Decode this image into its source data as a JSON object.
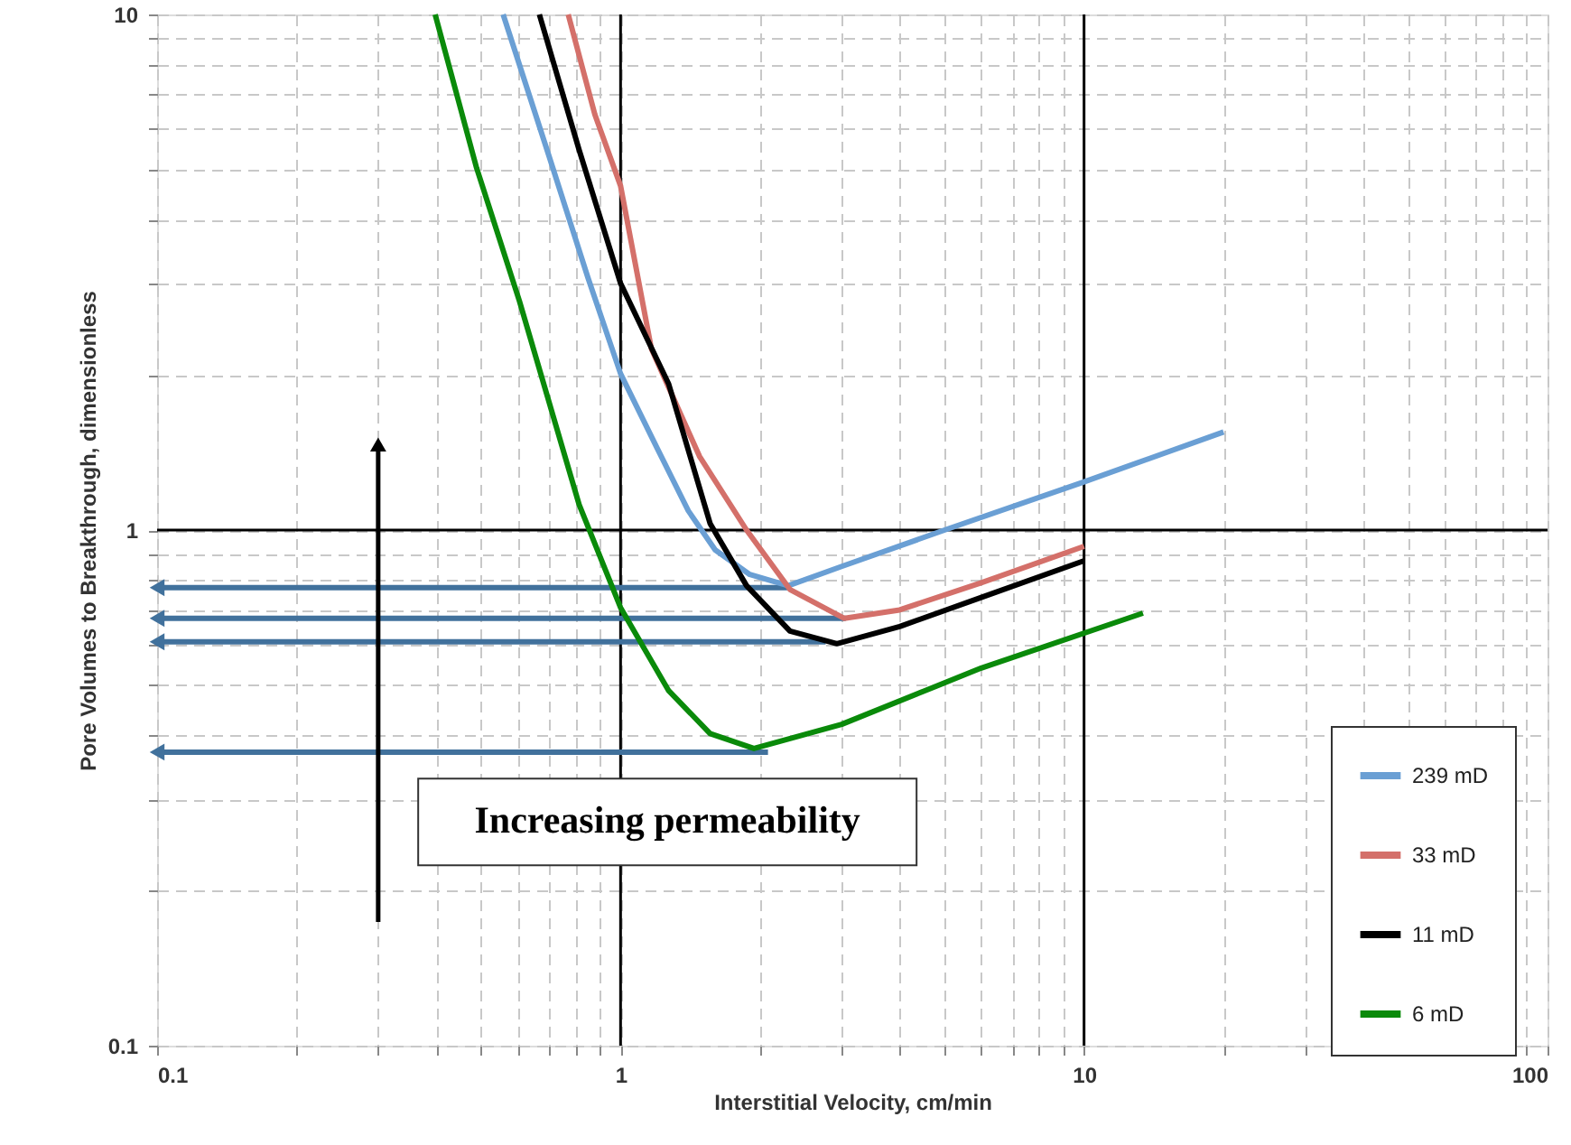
{
  "chart_data": {
    "type": "line",
    "xlabel": "Interstitial Velocity, cm/min",
    "ylabel": "Pore Volumes to Breakthrough, dimensionless",
    "log": "xy",
    "grid": true,
    "legend": "bottom right",
    "xlim": [
      0.1,
      100
    ],
    "ylim": [
      0.1,
      10
    ],
    "xticks": [
      0.1,
      {
        "value": 0.2,
        "label": null
      },
      {
        "value": 0.3,
        "label": null
      },
      {
        "value": 0.4,
        "label": null
      },
      {
        "value": 0.5,
        "label": null
      },
      {
        "value": 0.6,
        "label": null
      },
      {
        "value": 0.7,
        "label": null
      },
      {
        "value": 0.8,
        "label": null
      },
      {
        "value": 0.9,
        "label": null
      },
      1,
      {
        "value": 2,
        "label": null
      },
      {
        "value": 3,
        "label": null
      },
      {
        "value": 4,
        "label": null
      },
      {
        "value": 5,
        "label": null
      },
      {
        "value": 6,
        "label": null
      },
      {
        "value": 7,
        "label": null
      },
      {
        "value": 8,
        "label": null
      },
      {
        "value": 9,
        "label": null
      },
      10,
      {
        "value": 20,
        "label": null
      },
      {
        "value": 30,
        "label": null
      },
      {
        "value": 40,
        "label": null
      },
      {
        "value": 50,
        "label": null
      },
      {
        "value": 60,
        "label": null
      },
      {
        "value": 70,
        "label": null
      },
      {
        "value": 80,
        "label": null
      },
      {
        "value": 90,
        "label": null
      },
      100
    ],
    "yticks": [
      0.1,
      {
        "value": 0.2,
        "label": null
      },
      {
        "value": 0.3,
        "label": null
      },
      {
        "value": 0.4,
        "label": null
      },
      {
        "value": 0.5,
        "label": null
      },
      {
        "value": 0.6,
        "label": null
      },
      {
        "value": 0.7,
        "label": null
      },
      {
        "value": 0.8,
        "label": null
      },
      {
        "value": 0.9,
        "label": null
      },
      1,
      {
        "value": 2,
        "label": null
      },
      {
        "value": 3,
        "label": null
      },
      {
        "value": 4,
        "label": null
      },
      {
        "value": 5,
        "label": null
      },
      {
        "value": 6,
        "label": null
      },
      {
        "value": 7,
        "label": null
      },
      {
        "value": 8,
        "label": null
      },
      {
        "value": 9,
        "label": null
      },
      10
    ],
    "series": [
      {
        "name": "239 mD",
        "color": "#6a9fd4",
        "x": [
          0.558,
          0.7,
          0.85,
          1,
          1.2,
          1.4,
          1.6,
          1.9,
          2.3,
          3,
          5,
          10,
          20
        ],
        "values": [
          10,
          5.33,
          3.09,
          2.01,
          1.44,
          1.09,
          0.915,
          0.82,
          0.78,
          0.85,
          1.0,
          1.24,
          1.55
        ]
      },
      {
        "name": "33 mD",
        "color": "#d4706a",
        "x": [
          0.771,
          0.88,
          1,
          1.165,
          1.48,
          1.87,
          2.32,
          3.04,
          4,
          6,
          10
        ],
        "values": [
          10,
          6.4,
          4.65,
          2.25,
          1.39,
          1.0,
          0.767,
          0.674,
          0.7,
          0.79,
          0.93
        ]
      },
      {
        "name": "11 mD",
        "color": "#000000",
        "x": [
          0.668,
          0.814,
          1,
          1.27,
          1.56,
          1.87,
          2.32,
          2.93,
          4,
          6,
          10
        ],
        "values": [
          10,
          5.46,
          3.01,
          1.92,
          1.03,
          0.78,
          0.637,
          0.602,
          0.65,
          0.74,
          0.872
        ]
      },
      {
        "name": "6 mD",
        "color": "#0a8a0a",
        "x": [
          0.398,
          0.489,
          0.605,
          0.814,
          1,
          1.27,
          1.56,
          1.94,
          3,
          6,
          13.4
        ],
        "values": [
          10,
          5.04,
          2.78,
          1.12,
          0.707,
          0.488,
          0.403,
          0.377,
          0.42,
          0.54,
          0.69
        ]
      },
      {
        "color": "#41719c",
        "x": [
          0.1,
          2.32
        ],
        "values": [
          0.773,
          0.773
        ]
      },
      {
        "color": "#41719c",
        "x": [
          0.1,
          3.06
        ],
        "values": [
          0.674,
          0.674
        ]
      },
      {
        "color": "#41719c",
        "x": [
          0.1,
          2.77
        ],
        "values": [
          0.607,
          0.607
        ]
      },
      {
        "color": "#41719c",
        "x": [
          0.1,
          2.08
        ],
        "values": [
          0.371,
          0.371
        ]
      }
    ],
    "annotations": [
      "Increasing permeability"
    ]
  }
}
